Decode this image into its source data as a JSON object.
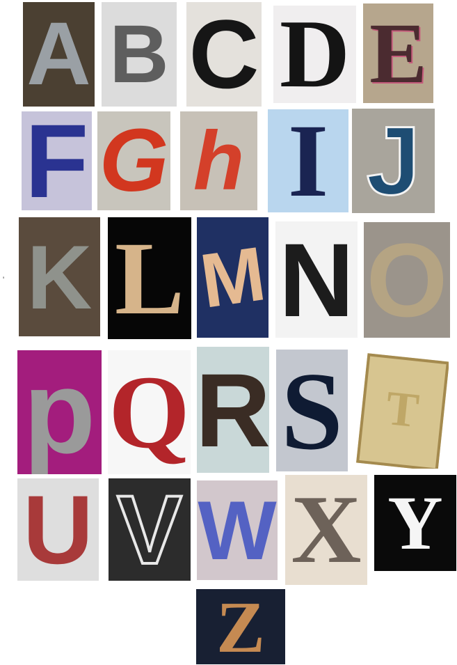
{
  "stray_mark": "'",
  "tiles": [
    {
      "letter": "A"
    },
    {
      "letter": "B"
    },
    {
      "letter": "C"
    },
    {
      "letter": "D"
    },
    {
      "letter": "E"
    },
    {
      "letter": "F"
    },
    {
      "letter": "G"
    },
    {
      "letter": "h"
    },
    {
      "letter": "I"
    },
    {
      "letter": "J"
    },
    {
      "letter": "K"
    },
    {
      "letter": "L"
    },
    {
      "letter": "M"
    },
    {
      "letter": "N"
    },
    {
      "letter": "O"
    },
    {
      "letter": "p"
    },
    {
      "letter": "Q"
    },
    {
      "letter": "R"
    },
    {
      "letter": "S"
    },
    {
      "letter": "T"
    },
    {
      "letter": "U"
    },
    {
      "letter": "V"
    },
    {
      "letter": "W"
    },
    {
      "letter": "X"
    },
    {
      "letter": "Y"
    },
    {
      "letter": "Z"
    }
  ]
}
